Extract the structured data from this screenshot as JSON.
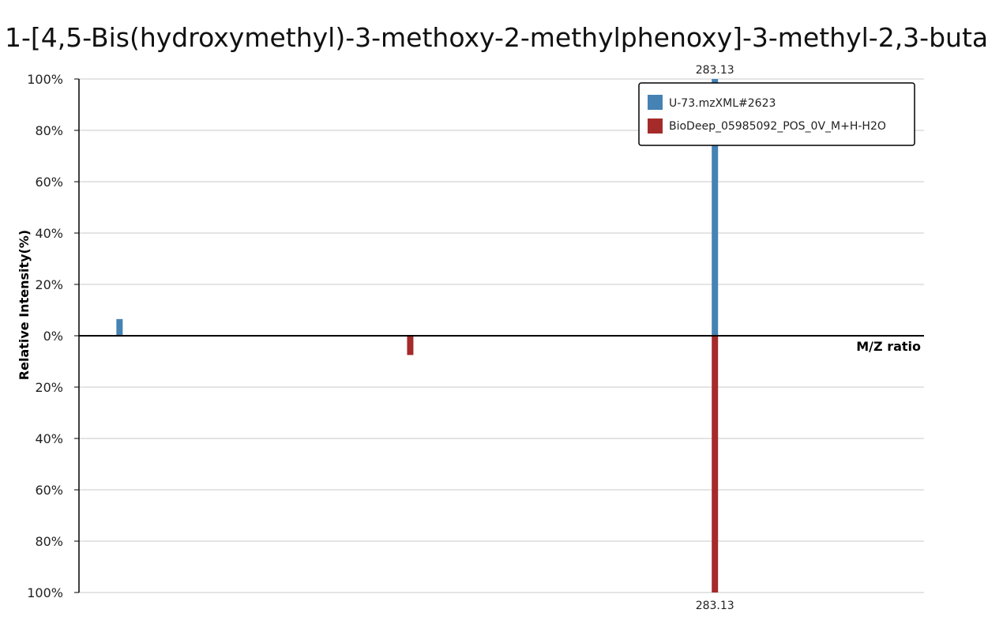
{
  "chart_data": {
    "type": "bar",
    "title": "1-[4,5-Bis(hydroxymethyl)-3-methoxy-2-methylphenoxy]-3-methyl-2,3-buta",
    "xlabel": "M/Z ratio",
    "ylabel": "Relative Intensity(%)",
    "y_top_ticks": [
      "100%",
      "80%",
      "60%",
      "40%",
      "20%",
      "0%"
    ],
    "y_bottom_ticks": [
      "20%",
      "40%",
      "60%",
      "80%",
      "100%"
    ],
    "ylim_top": [
      0,
      100
    ],
    "ylim_bottom": [
      0,
      100
    ],
    "grid": true,
    "legend_position": "top-right",
    "series": [
      {
        "name": "U-73.mzXML#2623",
        "color": "#4682b4",
        "direction": "up",
        "peaks": [
          {
            "mz": 107.0,
            "intensity": 6.5
          },
          {
            "mz": 283.13,
            "intensity": 100,
            "label": "283.13"
          }
        ]
      },
      {
        "name": "BioDeep_05985092_POS_0V_M+H-H2O",
        "color": "#a52a2a",
        "direction": "down",
        "peaks": [
          {
            "mz": 193.0,
            "intensity": 7.5
          },
          {
            "mz": 283.13,
            "intensity": 100,
            "label": "283.13"
          }
        ]
      }
    ],
    "xlim": [
      95,
      345
    ]
  }
}
